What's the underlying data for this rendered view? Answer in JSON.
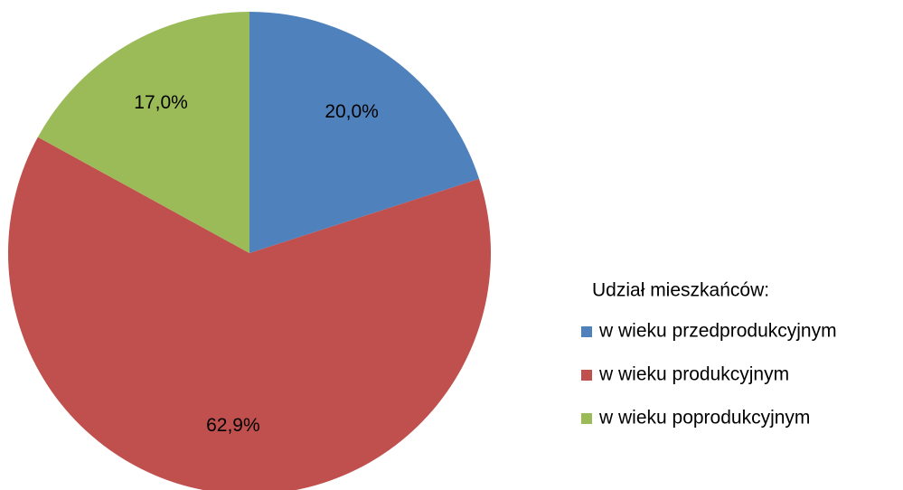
{
  "chart_data": {
    "type": "pie",
    "legend_title": "Udział mieszkańców:",
    "categories": [
      "w wieku przedprodukcyjnym",
      "w wieku produkcyjnym",
      "w wieku poprodukcyjnym"
    ],
    "values": [
      20.0,
      62.9,
      17.0
    ],
    "value_labels": [
      "20,0%",
      "62,9%",
      "17,0%"
    ],
    "colors": [
      "#4f81bd",
      "#c0504d",
      "#9bbb59"
    ],
    "legend": "right"
  }
}
